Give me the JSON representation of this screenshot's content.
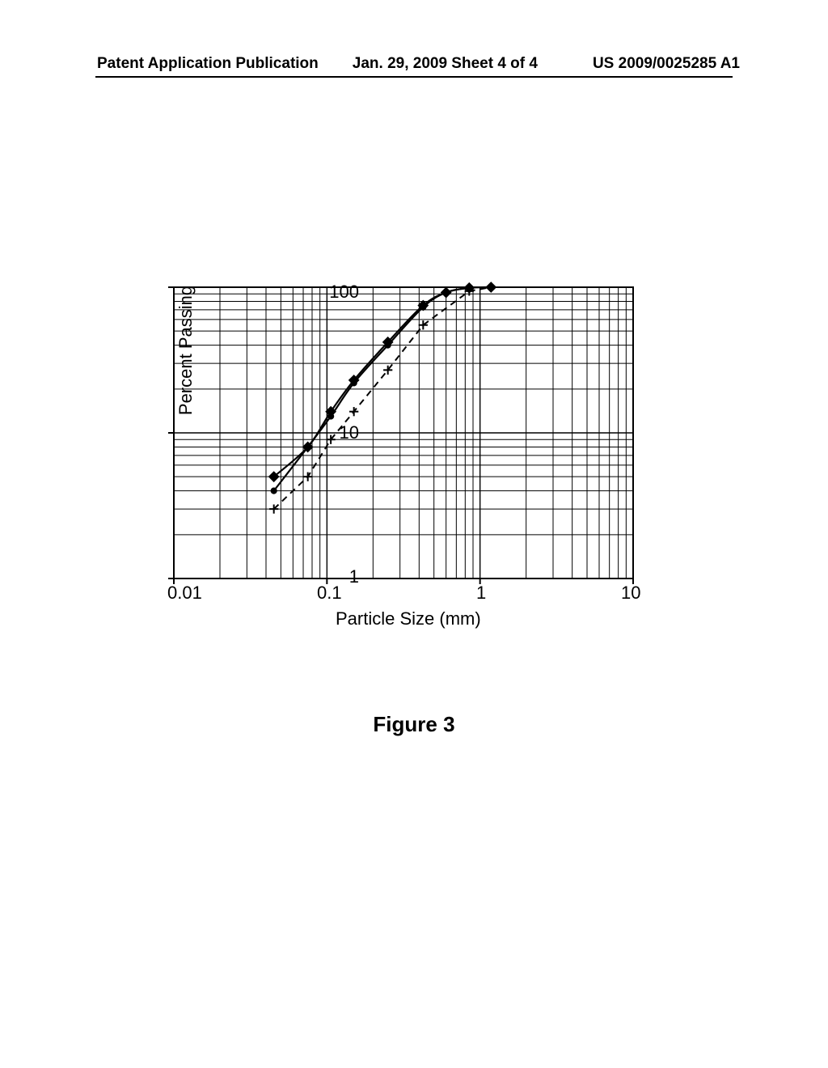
{
  "header": {
    "left": "Patent Application Publication",
    "center": "Jan. 29, 2009  Sheet 4 of 4",
    "right": "US 2009/0025285 A1"
  },
  "figure_caption": "Figure 3",
  "chart": {
    "type": "line-scatter-loglog",
    "xlabel": "Particle Size (mm)",
    "ylabel": "Percent Passing",
    "xlim": [
      0.01,
      10
    ],
    "ylim": [
      1,
      100
    ],
    "xticks": [
      0.01,
      0.1,
      1,
      10
    ],
    "xtick_labels": [
      "0.01",
      "0.1",
      "1",
      "10"
    ],
    "yticks": [
      1,
      10,
      100
    ],
    "ytick_labels": [
      "1",
      "10",
      "100"
    ],
    "background_color": "#ffffff",
    "grid_color": "#000000",
    "grid_line_width": 1,
    "axis_color": "#000000",
    "axis_line_width": 2,
    "tick_fontsize": 22,
    "label_fontsize": 22,
    "series": [
      {
        "name": "series-diamond-solid",
        "marker": "diamond",
        "marker_size": 9,
        "line_dash": "solid",
        "line_width": 2.2,
        "line_curved": true,
        "color": "#000000",
        "x": [
          0.045,
          0.075,
          0.106,
          0.15,
          0.25,
          0.425,
          0.6,
          0.85,
          1.18
        ],
        "y": [
          5,
          8,
          14,
          23,
          42,
          75,
          92,
          99,
          100
        ]
      },
      {
        "name": "series-circle-solid",
        "marker": "circle",
        "marker_size": 7,
        "line_dash": "solid",
        "line_width": 2.2,
        "line_curved": true,
        "color": "#000000",
        "x": [
          0.045,
          0.075,
          0.106,
          0.15,
          0.25,
          0.425,
          0.6,
          0.85
        ],
        "y": [
          4,
          8,
          13,
          22,
          40,
          73,
          92,
          99
        ]
      },
      {
        "name": "series-cross-dashed",
        "marker": "cross",
        "marker_size": 9,
        "line_dash": "dashed",
        "line_width": 2,
        "line_curved": false,
        "color": "#000000",
        "x": [
          0.045,
          0.075,
          0.106,
          0.15,
          0.25,
          0.425,
          0.85,
          1.18
        ],
        "y": [
          3,
          5,
          9,
          14,
          27,
          55,
          94,
          100
        ]
      }
    ]
  }
}
